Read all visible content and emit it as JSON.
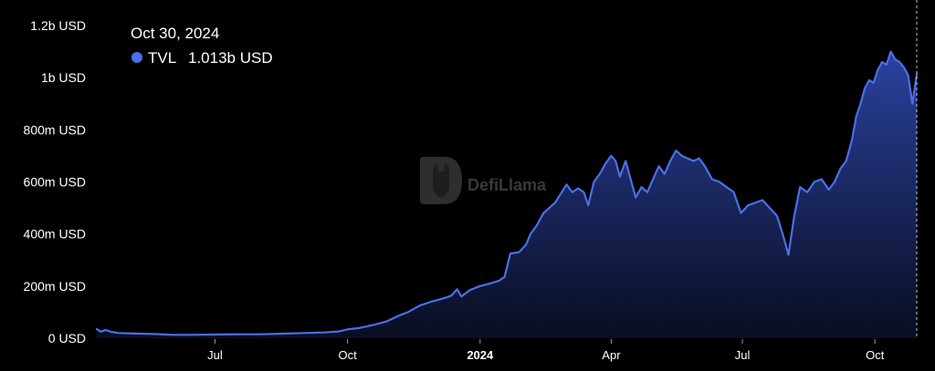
{
  "watermark": {
    "text": "DefiLlama"
  },
  "tooltip": {
    "date": "Oct 30, 2024",
    "series_label": "TVL",
    "value_text": "1.013b USD"
  },
  "colors": {
    "background": "#000000",
    "line": "#4a6fe8",
    "fill_top": "#2d45a8",
    "fill_bottom": "#0a0f24",
    "marker": "#4a6fe8",
    "text": "#ffffff"
  },
  "chart_data": {
    "type": "area",
    "title": "",
    "xlabel": "",
    "ylabel": "",
    "ylim": [
      0,
      1200
    ],
    "y_unit": "m USD",
    "yticks": [
      {
        "value": 0,
        "label": "0 USD"
      },
      {
        "value": 200,
        "label": "200m USD"
      },
      {
        "value": 400,
        "label": "400m USD"
      },
      {
        "value": 600,
        "label": "600m USD"
      },
      {
        "value": 800,
        "label": "800m USD"
      },
      {
        "value": 1000,
        "label": "1b USD"
      },
      {
        "value": 1200,
        "label": "1.2b USD"
      }
    ],
    "xlim": [
      "2023-04-10",
      "2024-10-30"
    ],
    "xticks": [
      {
        "date": "2023-07-01",
        "label": "Jul",
        "bold": false
      },
      {
        "date": "2023-10-01",
        "label": "Oct",
        "bold": false
      },
      {
        "date": "2024-01-01",
        "label": "2024",
        "bold": true
      },
      {
        "date": "2024-04-01",
        "label": "Apr",
        "bold": false
      },
      {
        "date": "2024-07-01",
        "label": "Jul",
        "bold": false
      },
      {
        "date": "2024-10-01",
        "label": "Oct",
        "bold": false
      }
    ],
    "grid": false,
    "legend": "none",
    "series": [
      {
        "name": "TVL",
        "points": [
          [
            "2023-04-10",
            35
          ],
          [
            "2023-04-13",
            25
          ],
          [
            "2023-04-16",
            32
          ],
          [
            "2023-04-20",
            24
          ],
          [
            "2023-04-25",
            20
          ],
          [
            "2023-05-05",
            18
          ],
          [
            "2023-05-20",
            16
          ],
          [
            "2023-06-01",
            13
          ],
          [
            "2023-06-15",
            13
          ],
          [
            "2023-07-01",
            14
          ],
          [
            "2023-07-15",
            15
          ],
          [
            "2023-08-01",
            15
          ],
          [
            "2023-08-15",
            17
          ],
          [
            "2023-09-01",
            20
          ],
          [
            "2023-09-15",
            22
          ],
          [
            "2023-09-25",
            26
          ],
          [
            "2023-10-01",
            34
          ],
          [
            "2023-10-10",
            40
          ],
          [
            "2023-10-20",
            52
          ],
          [
            "2023-10-28",
            64
          ],
          [
            "2023-11-05",
            85
          ],
          [
            "2023-11-12",
            100
          ],
          [
            "2023-11-20",
            125
          ],
          [
            "2023-11-28",
            140
          ],
          [
            "2023-12-05",
            150
          ],
          [
            "2023-12-12",
            163
          ],
          [
            "2023-12-16",
            188
          ],
          [
            "2023-12-19",
            160
          ],
          [
            "2023-12-25",
            185
          ],
          [
            "2024-01-01",
            200
          ],
          [
            "2024-01-08",
            210
          ],
          [
            "2024-01-14",
            220
          ],
          [
            "2024-01-18",
            235
          ],
          [
            "2024-01-22",
            325
          ],
          [
            "2024-01-28",
            330
          ],
          [
            "2024-02-02",
            360
          ],
          [
            "2024-02-05",
            400
          ],
          [
            "2024-02-09",
            430
          ],
          [
            "2024-02-14",
            480
          ],
          [
            "2024-02-18",
            500
          ],
          [
            "2024-02-22",
            520
          ],
          [
            "2024-02-26",
            555
          ],
          [
            "2024-03-01",
            590
          ],
          [
            "2024-03-05",
            560
          ],
          [
            "2024-03-09",
            575
          ],
          [
            "2024-03-13",
            560
          ],
          [
            "2024-03-16",
            510
          ],
          [
            "2024-03-20",
            600
          ],
          [
            "2024-03-24",
            630
          ],
          [
            "2024-03-28",
            670
          ],
          [
            "2024-04-01",
            700
          ],
          [
            "2024-04-04",
            680
          ],
          [
            "2024-04-07",
            620
          ],
          [
            "2024-04-11",
            680
          ],
          [
            "2024-04-14",
            620
          ],
          [
            "2024-04-18",
            540
          ],
          [
            "2024-04-22",
            580
          ],
          [
            "2024-04-26",
            560
          ],
          [
            "2024-04-30",
            610
          ],
          [
            "2024-05-04",
            660
          ],
          [
            "2024-05-08",
            630
          ],
          [
            "2024-05-12",
            680
          ],
          [
            "2024-05-16",
            720
          ],
          [
            "2024-05-20",
            700
          ],
          [
            "2024-05-24",
            690
          ],
          [
            "2024-05-28",
            680
          ],
          [
            "2024-06-01",
            690
          ],
          [
            "2024-06-05",
            660
          ],
          [
            "2024-06-10",
            610
          ],
          [
            "2024-06-15",
            600
          ],
          [
            "2024-06-20",
            580
          ],
          [
            "2024-06-25",
            560
          ],
          [
            "2024-06-30",
            480
          ],
          [
            "2024-07-05",
            510
          ],
          [
            "2024-07-10",
            520
          ],
          [
            "2024-07-15",
            530
          ],
          [
            "2024-07-20",
            500
          ],
          [
            "2024-07-25",
            470
          ],
          [
            "2024-07-29",
            400
          ],
          [
            "2024-08-02",
            320
          ],
          [
            "2024-08-06",
            470
          ],
          [
            "2024-08-10",
            580
          ],
          [
            "2024-08-15",
            560
          ],
          [
            "2024-08-20",
            600
          ],
          [
            "2024-08-25",
            610
          ],
          [
            "2024-08-30",
            570
          ],
          [
            "2024-09-03",
            600
          ],
          [
            "2024-09-07",
            650
          ],
          [
            "2024-09-11",
            680
          ],
          [
            "2024-09-15",
            760
          ],
          [
            "2024-09-18",
            850
          ],
          [
            "2024-09-21",
            900
          ],
          [
            "2024-09-24",
            960
          ],
          [
            "2024-09-27",
            990
          ],
          [
            "2024-09-30",
            980
          ],
          [
            "2024-10-03",
            1030
          ],
          [
            "2024-10-06",
            1060
          ],
          [
            "2024-10-09",
            1050
          ],
          [
            "2024-10-12",
            1100
          ],
          [
            "2024-10-15",
            1070
          ],
          [
            "2024-10-18",
            1060
          ],
          [
            "2024-10-21",
            1040
          ],
          [
            "2024-10-24",
            1010
          ],
          [
            "2024-10-27",
            900
          ],
          [
            "2024-10-30",
            1013
          ]
        ]
      }
    ],
    "highlight": {
      "date": "2024-10-30",
      "value": 1013
    }
  }
}
